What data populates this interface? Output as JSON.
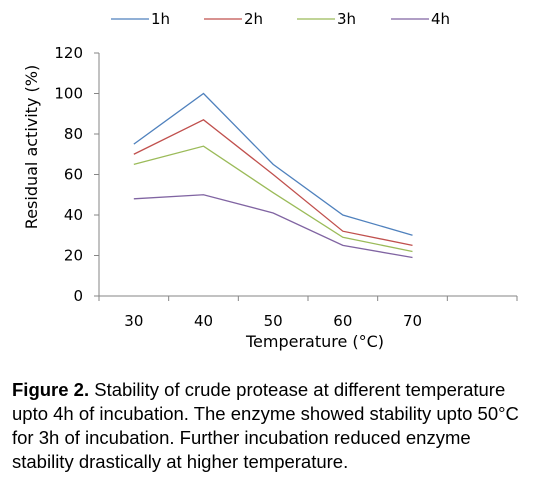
{
  "chart_data": {
    "type": "line",
    "xlabel": "Temperature (°C)",
    "ylabel": "Residual activity (%)",
    "categories": [
      "30",
      "40",
      "50",
      "60",
      "70"
    ],
    "ylim": [
      0,
      120
    ],
    "y_ticks": [
      "0",
      "20",
      "40",
      "60",
      "80",
      "100",
      "120"
    ],
    "legend_position": "top",
    "grid": false,
    "series": [
      {
        "name": "1h",
        "color": "#4f81bd",
        "values": [
          75,
          100,
          65,
          40,
          30
        ]
      },
      {
        "name": "2h",
        "color": "#c0504d",
        "values": [
          70,
          87,
          60,
          32,
          25
        ]
      },
      {
        "name": "3h",
        "color": "#9bbb59",
        "values": [
          65,
          74,
          51,
          29,
          22
        ]
      },
      {
        "name": "4h",
        "color": "#8064a2",
        "values": [
          48,
          50,
          41,
          25,
          19
        ]
      }
    ]
  },
  "caption": {
    "label": "Figure 2.",
    "text": " Stability of crude protease at different temperature upto 4h of incubation. The enzyme showed stability upto 50°C for 3h of incubation. Further incubation reduced enzyme stability drastically at higher temperature."
  }
}
